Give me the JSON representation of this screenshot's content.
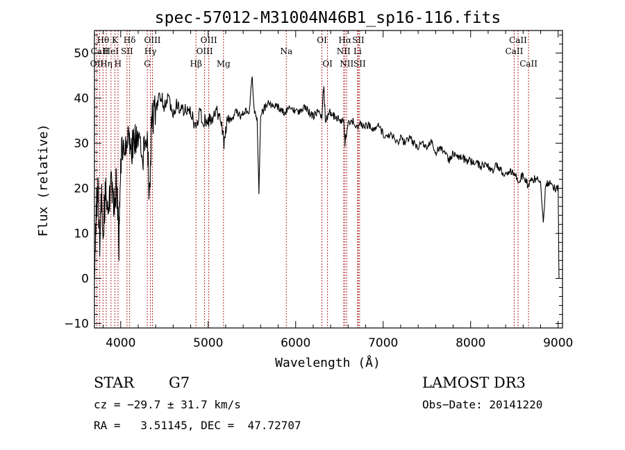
{
  "chart_data": {
    "type": "line",
    "title": "spec-57012-M31004N46B1_sp16-116.fits",
    "xlabel": "Wavelength (Å)",
    "ylabel": "Flux (relative)",
    "xlim": [
      3700,
      9050
    ],
    "ylim": [
      -11,
      55
    ],
    "x_ticks": [
      4000,
      5000,
      6000,
      7000,
      8000,
      9000
    ],
    "y_ticks": [
      -10,
      0,
      10,
      20,
      30,
      40,
      50
    ],
    "x_tick_labels": [
      "4000",
      "5000",
      "6000",
      "7000",
      "8000",
      "9000"
    ],
    "y_tick_labels": [
      "−10",
      "0",
      "10",
      "20",
      "30",
      "40",
      "50"
    ],
    "series": [
      {
        "name": "spectrum",
        "color": "#000000",
        "points": [
          [
            3700,
            0
          ],
          [
            3720,
            15
          ],
          [
            3740,
            20
          ],
          [
            3760,
            8
          ],
          [
            3780,
            18
          ],
          [
            3800,
            12
          ],
          [
            3830,
            20
          ],
          [
            3860,
            14
          ],
          [
            3890,
            22
          ],
          [
            3920,
            16
          ],
          [
            3950,
            22
          ],
          [
            3980,
            8
          ],
          [
            4000,
            26
          ],
          [
            4040,
            30
          ],
          [
            4080,
            31
          ],
          [
            4120,
            29
          ],
          [
            4160,
            32
          ],
          [
            4200,
            30
          ],
          [
            4250,
            28
          ],
          [
            4300,
            30
          ],
          [
            4330,
            18
          ],
          [
            4350,
            33
          ],
          [
            4380,
            37
          ],
          [
            4420,
            39
          ],
          [
            4460,
            41
          ],
          [
            4500,
            38
          ],
          [
            4550,
            40
          ],
          [
            4600,
            37
          ],
          [
            4650,
            39
          ],
          [
            4700,
            37
          ],
          [
            4750,
            38
          ],
          [
            4800,
            37
          ],
          [
            4860,
            33
          ],
          [
            4900,
            37
          ],
          [
            4950,
            35
          ],
          [
            5000,
            35
          ],
          [
            5050,
            36
          ],
          [
            5100,
            37
          ],
          [
            5150,
            35
          ],
          [
            5180,
            30
          ],
          [
            5220,
            36
          ],
          [
            5270,
            36
          ],
          [
            5320,
            37
          ],
          [
            5370,
            36
          ],
          [
            5420,
            37
          ],
          [
            5470,
            37
          ],
          [
            5500,
            45
          ],
          [
            5530,
            37
          ],
          [
            5560,
            35
          ],
          [
            5580,
            19
          ],
          [
            5600,
            36
          ],
          [
            5650,
            38
          ],
          [
            5700,
            39
          ],
          [
            5750,
            38
          ],
          [
            5800,
            38
          ],
          [
            5850,
            37
          ],
          [
            5900,
            37
          ],
          [
            5950,
            38
          ],
          [
            6000,
            37
          ],
          [
            6050,
            37
          ],
          [
            6100,
            38
          ],
          [
            6150,
            37
          ],
          [
            6200,
            36
          ],
          [
            6250,
            37
          ],
          [
            6300,
            36
          ],
          [
            6320,
            43
          ],
          [
            6340,
            35
          ],
          [
            6380,
            37
          ],
          [
            6420,
            36
          ],
          [
            6460,
            36
          ],
          [
            6500,
            35
          ],
          [
            6550,
            35
          ],
          [
            6563,
            30
          ],
          [
            6600,
            35
          ],
          [
            6650,
            35
          ],
          [
            6700,
            34
          ],
          [
            6750,
            34
          ],
          [
            6800,
            34
          ],
          [
            6850,
            34
          ],
          [
            6900,
            33
          ],
          [
            6950,
            34
          ],
          [
            7000,
            32
          ],
          [
            7050,
            32
          ],
          [
            7100,
            32
          ],
          [
            7150,
            30
          ],
          [
            7200,
            31
          ],
          [
            7250,
            30
          ],
          [
            7300,
            31
          ],
          [
            7350,
            30
          ],
          [
            7400,
            29
          ],
          [
            7450,
            30
          ],
          [
            7500,
            29
          ],
          [
            7550,
            30
          ],
          [
            7600,
            28
          ],
          [
            7650,
            29
          ],
          [
            7700,
            28
          ],
          [
            7750,
            26
          ],
          [
            7800,
            28
          ],
          [
            7850,
            27
          ],
          [
            7900,
            27
          ],
          [
            7950,
            26
          ],
          [
            8000,
            26
          ],
          [
            8050,
            26
          ],
          [
            8100,
            25
          ],
          [
            8150,
            25
          ],
          [
            8200,
            25
          ],
          [
            8250,
            24
          ],
          [
            8300,
            25
          ],
          [
            8350,
            24
          ],
          [
            8400,
            23
          ],
          [
            8450,
            24
          ],
          [
            8500,
            23
          ],
          [
            8550,
            22
          ],
          [
            8600,
            23
          ],
          [
            8650,
            21
          ],
          [
            8700,
            22
          ],
          [
            8750,
            22
          ],
          [
            8800,
            21
          ],
          [
            8830,
            13
          ],
          [
            8860,
            21
          ],
          [
            8900,
            21
          ],
          [
            8950,
            20
          ],
          [
            9000,
            20
          ],
          [
            9010,
            0
          ]
        ]
      }
    ],
    "line_markers": [
      {
        "label": "OII",
        "x": 3727,
        "row": 3
      },
      {
        "label": "Hθ",
        "x": 3798,
        "row": 1
      },
      {
        "label": "CaII",
        "x": 3760,
        "row": 2
      },
      {
        "label": "Hη",
        "x": 3835,
        "row": 3
      },
      {
        "label": "K",
        "x": 3934,
        "row": 1
      },
      {
        "label": "HeI",
        "x": 3889,
        "row": 2
      },
      {
        "label": "H",
        "x": 3969,
        "row": 3
      },
      {
        "label": "SII",
        "x": 4072,
        "row": 2
      },
      {
        "label": "Hδ",
        "x": 4102,
        "row": 1
      },
      {
        "label": "OIII",
        "x": 4363,
        "row": 1
      },
      {
        "label": "Hγ",
        "x": 4340,
        "row": 2
      },
      {
        "label": "G",
        "x": 4304,
        "row": 3
      },
      {
        "label": "Hβ",
        "x": 4861,
        "row": 3
      },
      {
        "label": "OIII",
        "x": 5007,
        "row": 1
      },
      {
        "label": "OIII",
        "x": 4959,
        "row": 2
      },
      {
        "label": "Mg",
        "x": 5175,
        "row": 3
      },
      {
        "label": "Na",
        "x": 5893,
        "row": 2
      },
      {
        "label": "OI",
        "x": 6300,
        "row": 1
      },
      {
        "label": "OI",
        "x": 6364,
        "row": 3
      },
      {
        "label": "Hα",
        "x": 6563,
        "row": 1
      },
      {
        "label": "NII",
        "x": 6548,
        "row": 2
      },
      {
        "label": "NII",
        "x": 6583,
        "row": 3
      },
      {
        "label": "SII",
        "x": 6716,
        "row": 1
      },
      {
        "label": "Li",
        "x": 6708,
        "row": 2
      },
      {
        "label": "SII",
        "x": 6731,
        "row": 3
      },
      {
        "label": "CaII",
        "x": 8542,
        "row": 1
      },
      {
        "label": "CaII",
        "x": 8498,
        "row": 2
      },
      {
        "label": "CaII",
        "x": 8662,
        "row": 3
      }
    ],
    "marker_color": "#b22222"
  },
  "info": {
    "class": "STAR",
    "subclass": "G7",
    "survey": "LAMOST DR3",
    "cz": "cz = −29.7 ± 31.7 km/s",
    "obs_date": "Obs−Date: 20141220",
    "radec": "RA =   3.51145, DEC =  47.72707"
  }
}
